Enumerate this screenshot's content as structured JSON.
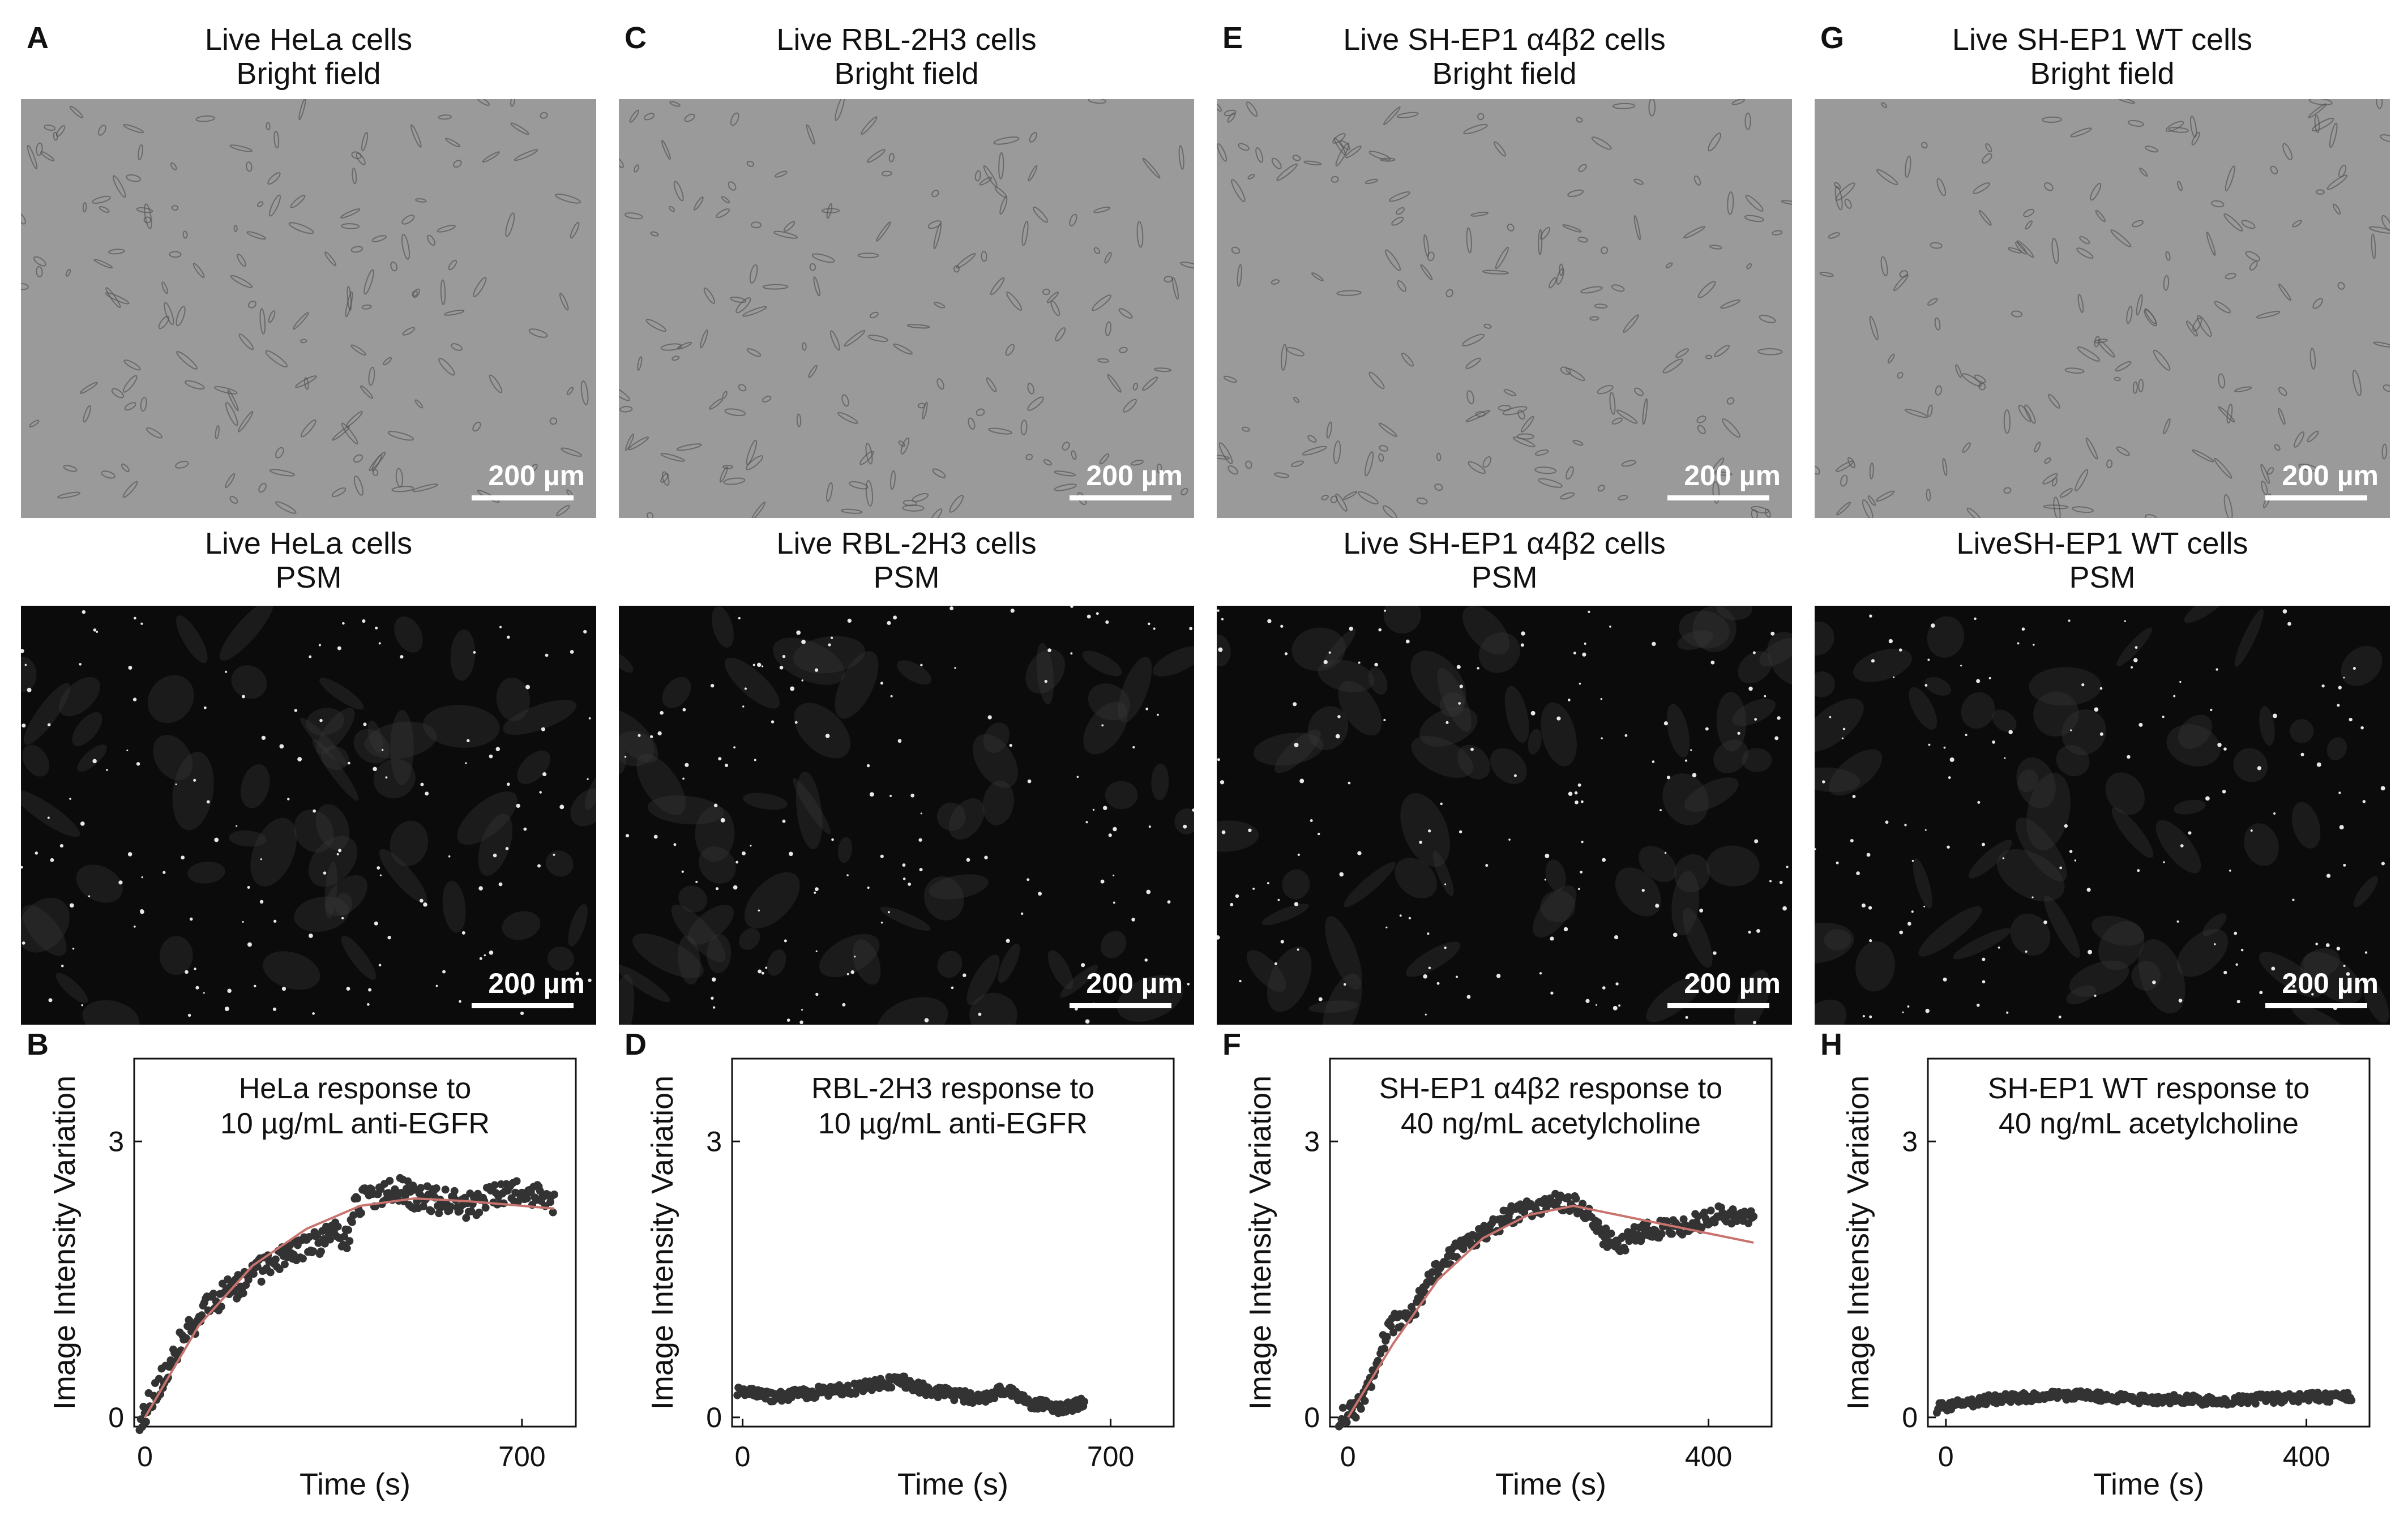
{
  "panels": [
    {
      "bf_letter": "A",
      "bf_title_line1": "Live HeLa cells",
      "bf_title_line2": "Bright field",
      "psm_title_line1": "Live HeLa cells",
      "psm_title_line2": "PSM",
      "scale_bar_top": "200 µm",
      "scale_bar_bottom": "200 µm",
      "plot_letter": "B"
    },
    {
      "bf_letter": "C",
      "bf_title_line1": "Live RBL-2H3 cells",
      "bf_title_line2": "Bright field",
      "psm_title_line1": "Live RBL-2H3 cells",
      "psm_title_line2": "PSM",
      "scale_bar_top": "200 µm",
      "scale_bar_bottom": "200 µm",
      "plot_letter": "D"
    },
    {
      "bf_letter": "E",
      "bf_title_line1": "Live SH-EP1 α4β2 cells",
      "bf_title_line2": "Bright field",
      "psm_title_line1": "Live SH-EP1 α4β2 cells",
      "psm_title_line2": "PSM",
      "scale_bar_top": "200 µm",
      "scale_bar_bottom": "200 µm",
      "plot_letter": "F"
    },
    {
      "bf_letter": "G",
      "bf_title_line1": "Live SH-EP1 WT cells",
      "bf_title_line2": "Bright field",
      "psm_title_line1": "LiveSH-EP1 WT cells",
      "psm_title_line2": "PSM",
      "scale_bar_top": "200 µm",
      "scale_bar_bottom": "200 µm",
      "plot_letter": "H"
    }
  ],
  "colors": {
    "bright_field_bg": "#9a9a9a",
    "psm_bg": "#0b0b0b",
    "data_points": "#333333",
    "fit_line": "#c8736e"
  },
  "chart_data": [
    {
      "type": "scatter",
      "title_line1": "HeLa response to",
      "title_line2": "10 µg/mL anti-EGFR",
      "xlabel": "Time (s)",
      "ylabel": "Image Intensity Variation",
      "xlim": [
        -20,
        800
      ],
      "ylim": [
        -0.1,
        3.9
      ],
      "xticks": [
        0,
        700
      ],
      "yticks": [
        0,
        3
      ],
      "profile": [
        [
          -10,
          0
        ],
        [
          0,
          0.05
        ],
        [
          30,
          0.4
        ],
        [
          60,
          0.75
        ],
        [
          100,
          1.1
        ],
        [
          150,
          1.35
        ],
        [
          200,
          1.55
        ],
        [
          250,
          1.75
        ],
        [
          300,
          1.85
        ],
        [
          360,
          2.0
        ],
        [
          380,
          1.95
        ],
        [
          390,
          2.3
        ],
        [
          420,
          2.4
        ],
        [
          460,
          2.5
        ],
        [
          500,
          2.4
        ],
        [
          550,
          2.35
        ],
        [
          600,
          2.3
        ],
        [
          650,
          2.4
        ],
        [
          700,
          2.45
        ],
        [
          740,
          2.4
        ],
        [
          760,
          2.3
        ]
      ],
      "noise": 0.14,
      "fit": {
        "x": [
          0,
          100,
          200,
          300,
          400,
          500,
          600,
          700,
          760
        ],
        "y": [
          0,
          1.0,
          1.65,
          2.05,
          2.3,
          2.38,
          2.35,
          2.3,
          2.27
        ]
      }
    },
    {
      "type": "scatter",
      "title_line1": "RBL-2H3 response to",
      "title_line2": "10 µg/mL anti-EGFR",
      "xlabel": "Time (s)",
      "ylabel": "Image Intensity Variation",
      "xlim": [
        -20,
        820
      ],
      "ylim": [
        -0.1,
        3.9
      ],
      "xticks": [
        0,
        700
      ],
      "yticks": [
        0,
        3
      ],
      "profile": [
        [
          -10,
          0.3
        ],
        [
          50,
          0.22
        ],
        [
          100,
          0.25
        ],
        [
          150,
          0.28
        ],
        [
          200,
          0.3
        ],
        [
          250,
          0.35
        ],
        [
          300,
          0.4
        ],
        [
          350,
          0.3
        ],
        [
          400,
          0.25
        ],
        [
          450,
          0.2
        ],
        [
          500,
          0.3
        ],
        [
          550,
          0.15
        ],
        [
          600,
          0.1
        ],
        [
          650,
          0.15
        ]
      ],
      "noise": 0.06,
      "fit": null
    },
    {
      "type": "scatter",
      "title_line1": "SH-EP1 α4β2 response to",
      "title_line2": "40 ng/mL acetylcholine",
      "xlabel": "Time (s)",
      "ylabel": "Image Intensity Variation",
      "xlim": [
        -20,
        470
      ],
      "ylim": [
        -0.1,
        3.9
      ],
      "xticks": [
        0,
        400
      ],
      "yticks": [
        0,
        3
      ],
      "profile": [
        [
          -10,
          0
        ],
        [
          10,
          0.1
        ],
        [
          30,
          0.5
        ],
        [
          45,
          1.0
        ],
        [
          70,
          1.1
        ],
        [
          90,
          1.5
        ],
        [
          120,
          1.8
        ],
        [
          150,
          2.0
        ],
        [
          180,
          2.2
        ],
        [
          210,
          2.3
        ],
        [
          240,
          2.35
        ],
        [
          260,
          2.3
        ],
        [
          280,
          2.0
        ],
        [
          300,
          1.85
        ],
        [
          320,
          2.0
        ],
        [
          350,
          2.05
        ],
        [
          380,
          2.1
        ],
        [
          410,
          2.2
        ],
        [
          440,
          2.2
        ],
        [
          450,
          2.2
        ]
      ],
      "noise": 0.1,
      "fit": {
        "x": [
          0,
          50,
          100,
          150,
          200,
          250,
          300,
          350,
          400,
          450
        ],
        "y": [
          0,
          0.8,
          1.5,
          1.95,
          2.2,
          2.3,
          2.2,
          2.1,
          2.0,
          1.9
        ]
      }
    },
    {
      "type": "scatter",
      "title_line1": "SH-EP1 WT response to",
      "title_line2": "40 ng/mL acetylcholine",
      "xlabel": "Time (s)",
      "ylabel": "Image Intensity Variation",
      "xlim": [
        -20,
        470
      ],
      "ylim": [
        -0.1,
        3.9
      ],
      "xticks": [
        0,
        400
      ],
      "yticks": [
        0,
        3
      ],
      "profile": [
        [
          -10,
          0.1
        ],
        [
          50,
          0.2
        ],
        [
          100,
          0.22
        ],
        [
          150,
          0.25
        ],
        [
          200,
          0.2
        ],
        [
          250,
          0.2
        ],
        [
          300,
          0.18
        ],
        [
          350,
          0.2
        ],
        [
          400,
          0.22
        ],
        [
          450,
          0.22
        ]
      ],
      "noise": 0.05,
      "fit": null
    }
  ]
}
